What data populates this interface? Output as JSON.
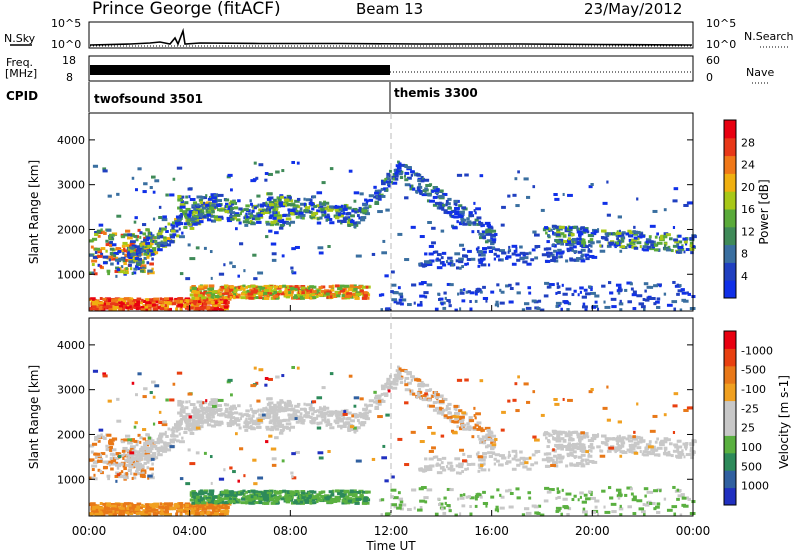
{
  "header": {
    "station": "Prince George (fitACF)",
    "beam": "Beam 13",
    "date": "23/May/2012"
  },
  "side_labels": {
    "nsky": "N.Sky",
    "nsearch": "N.Search",
    "freq_line1": "Freq.",
    "freq_line2": "[MHz]",
    "nave": "Nave",
    "cpid": "CPID"
  },
  "cpid_modes": [
    {
      "label": "twofsound 3501",
      "start_hour": 0
    },
    {
      "label": "themis 3300",
      "start_hour": 12
    }
  ],
  "colorbars": {
    "power": {
      "title": "Power [dB]",
      "ticks": [
        "4",
        "8",
        "12",
        "16",
        "20",
        "24",
        "28"
      ],
      "colors": [
        "#1030e8",
        "#2040c0",
        "#3a6fa0",
        "#3f8a58",
        "#5aaa3a",
        "#a8c818",
        "#f0b010",
        "#f07818",
        "#e83818",
        "#e80010"
      ]
    },
    "velocity": {
      "title": "Velocity [m s-1]",
      "ticks": [
        "1000",
        "500",
        "100",
        "25",
        "-25",
        "-100",
        "-500",
        "-1000"
      ],
      "colors": [
        "#2030c0",
        "#3060a0",
        "#2d8a5a",
        "#5ab040",
        "#c8c8c8",
        "#c8c8c8",
        "#f0a020",
        "#e87818",
        "#e84010",
        "#e80010"
      ]
    }
  },
  "chart_data": [
    {
      "type": "line",
      "name": "noise",
      "left_ticks": [
        "10^5",
        "10^0"
      ],
      "right_ticks": [
        "10^5",
        "10^0"
      ],
      "x_range_hours": [
        0,
        24
      ]
    },
    {
      "type": "line",
      "name": "frequency",
      "left_ticks": [
        "18",
        "8"
      ],
      "right_ticks": [
        "60",
        "0"
      ],
      "x_range_hours": [
        0,
        24
      ]
    },
    {
      "type": "heatmap",
      "name": "power",
      "ylabel": "Slant Range [km]",
      "yticks": [
        "1000",
        "2000",
        "3000",
        "4000"
      ],
      "ylim": [
        180,
        4600
      ],
      "x_range_hours": [
        0,
        24
      ]
    },
    {
      "type": "heatmap",
      "name": "velocity",
      "ylabel": "Slant Range [km]",
      "yticks": [
        "1000",
        "2000",
        "3000",
        "4000"
      ],
      "ylim": [
        180,
        4600
      ],
      "xlabel": "Time UT",
      "xticks": [
        "00:00",
        "04:00",
        "08:00",
        "12:00",
        "16:00",
        "20:00",
        "00:00"
      ],
      "x_range_hours": [
        0,
        24
      ]
    }
  ]
}
